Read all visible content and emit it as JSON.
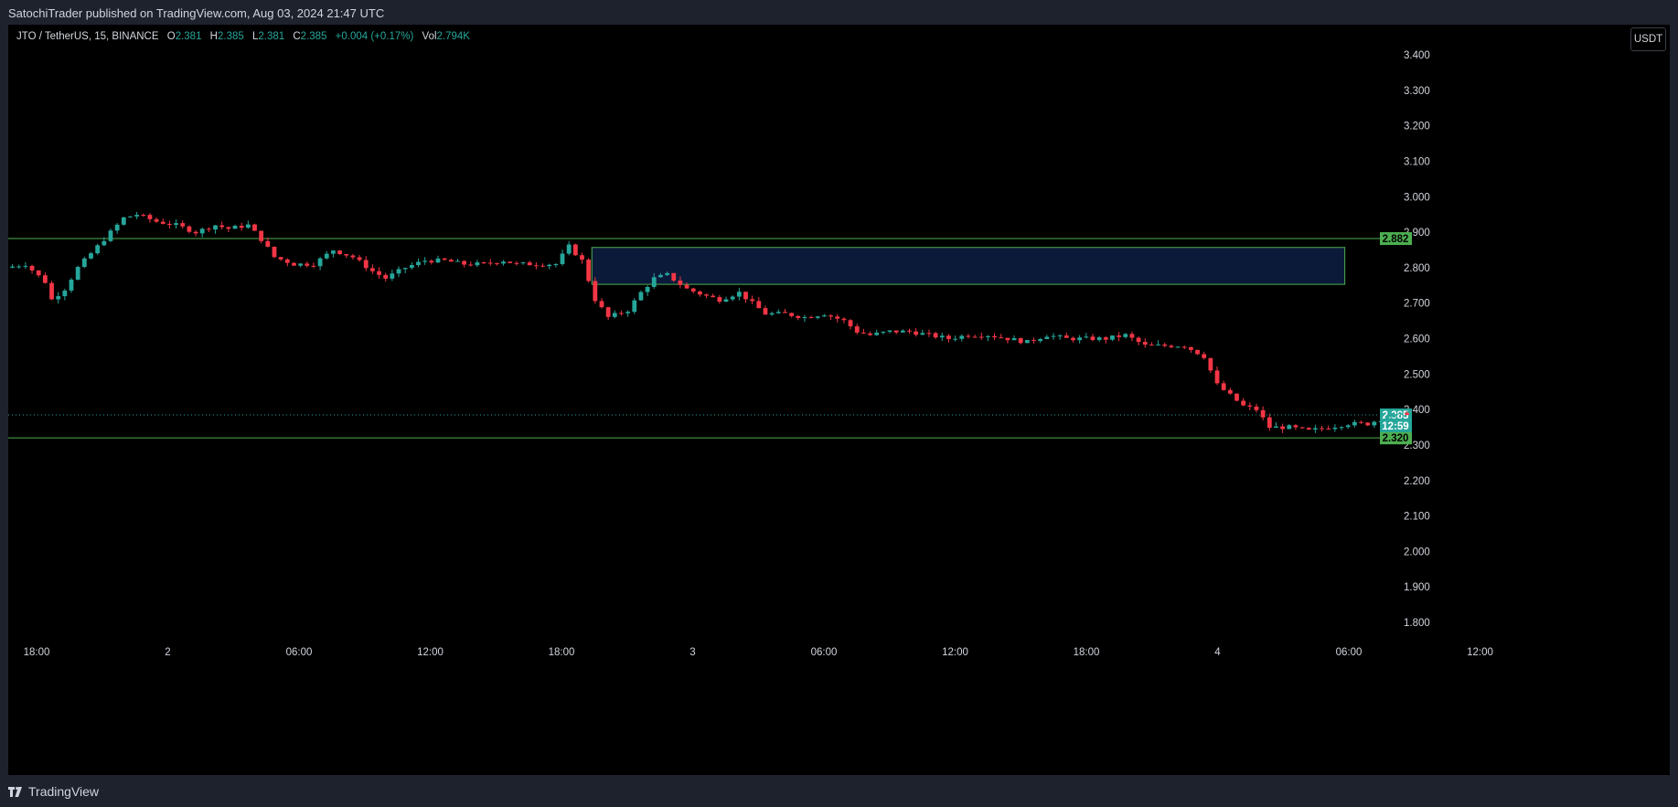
{
  "header": {
    "publish_text": "SatochiTrader published on TradingView.com, Aug 03, 2024 21:47 UTC"
  },
  "legend": {
    "symbol": "JTO / TetherUS, 15, BINANCE",
    "open_label": "O",
    "open": "2.381",
    "high_label": "H",
    "high": "2.385",
    "low_label": "L",
    "low": "2.381",
    "close_label": "C",
    "close": "2.385",
    "change": "+0.004 (+0.17%)",
    "vol_label": "Vol",
    "vol": "2.794K"
  },
  "currency_button": "USDT",
  "footer": {
    "brand": "TradingView"
  },
  "colors": {
    "up": "#26a69a",
    "down": "#f23645",
    "level_line": "#4caf50",
    "zone_fill": "#0c1a3a",
    "zone_border": "#4caf50"
  },
  "chart_data": {
    "type": "candlestick",
    "symbol": "JTO / TetherUS",
    "interval": "15",
    "exchange": "BINANCE",
    "ylim": [
      1.75,
      3.45
    ],
    "y_ticks": [
      "3.400",
      "3.300",
      "3.200",
      "3.100",
      "3.000",
      "2.900",
      "2.800",
      "2.700",
      "2.600",
      "2.500",
      "2.400",
      "2.300",
      "2.200",
      "2.100",
      "2.000",
      "1.900",
      "1.800"
    ],
    "x_ticks": [
      "18:00",
      "2",
      "06:00",
      "12:00",
      "18:00",
      "3",
      "06:00",
      "12:00",
      "18:00",
      "4",
      "06:00",
      "12:00"
    ],
    "horizontal_levels": [
      {
        "price": 2.882,
        "label": "2.882"
      },
      {
        "price": 2.32,
        "label": "2.320"
      }
    ],
    "zone": {
      "from_time_index": 89,
      "to_time_index": 204,
      "top": 2.857,
      "bottom": 2.753
    },
    "last_price": {
      "value": 2.385,
      "label": "2.385",
      "countdown": "12:59"
    },
    "price_path": [
      [
        0,
        2.8
      ],
      [
        3,
        2.81
      ],
      [
        6,
        2.76
      ],
      [
        7,
        2.71
      ],
      [
        9,
        2.74
      ],
      [
        11,
        2.8
      ],
      [
        13,
        2.84
      ],
      [
        16,
        2.9
      ],
      [
        18,
        2.94
      ],
      [
        20,
        2.95
      ],
      [
        23,
        2.93
      ],
      [
        26,
        2.92
      ],
      [
        29,
        2.9
      ],
      [
        32,
        2.92
      ],
      [
        34,
        2.91
      ],
      [
        37,
        2.92
      ],
      [
        39,
        2.88
      ],
      [
        41,
        2.83
      ],
      [
        44,
        2.81
      ],
      [
        47,
        2.81
      ],
      [
        50,
        2.85
      ],
      [
        53,
        2.83
      ],
      [
        56,
        2.79
      ],
      [
        58,
        2.77
      ],
      [
        61,
        2.8
      ],
      [
        64,
        2.82
      ],
      [
        67,
        2.82
      ],
      [
        70,
        2.81
      ],
      [
        73,
        2.81
      ],
      [
        76,
        2.82
      ],
      [
        78,
        2.81
      ],
      [
        81,
        2.81
      ],
      [
        84,
        2.81
      ],
      [
        86,
        2.86
      ],
      [
        88,
        2.82
      ],
      [
        90,
        2.71
      ],
      [
        92,
        2.66
      ],
      [
        95,
        2.68
      ],
      [
        97,
        2.73
      ],
      [
        99,
        2.77
      ],
      [
        101,
        2.78
      ],
      [
        104,
        2.74
      ],
      [
        107,
        2.72
      ],
      [
        109,
        2.71
      ],
      [
        112,
        2.73
      ],
      [
        114,
        2.7
      ],
      [
        116,
        2.67
      ],
      [
        119,
        2.67
      ],
      [
        122,
        2.66
      ],
      [
        125,
        2.67
      ],
      [
        128,
        2.65
      ],
      [
        130,
        2.62
      ],
      [
        132,
        2.61
      ],
      [
        135,
        2.62
      ],
      [
        138,
        2.62
      ],
      [
        141,
        2.61
      ],
      [
        144,
        2.6
      ],
      [
        147,
        2.61
      ],
      [
        150,
        2.61
      ],
      [
        153,
        2.6
      ],
      [
        156,
        2.59
      ],
      [
        159,
        2.61
      ],
      [
        162,
        2.6
      ],
      [
        165,
        2.6
      ],
      [
        168,
        2.6
      ],
      [
        171,
        2.61
      ],
      [
        174,
        2.58
      ],
      [
        177,
        2.58
      ],
      [
        180,
        2.58
      ],
      [
        183,
        2.55
      ],
      [
        185,
        2.47
      ],
      [
        187,
        2.44
      ],
      [
        189,
        2.41
      ],
      [
        191,
        2.4
      ],
      [
        193,
        2.35
      ],
      [
        196,
        2.35
      ],
      [
        199,
        2.34
      ],
      [
        202,
        2.35
      ],
      [
        205,
        2.36
      ],
      [
        208,
        2.36
      ],
      [
        211,
        2.38
      ],
      [
        213,
        2.385
      ]
    ]
  }
}
